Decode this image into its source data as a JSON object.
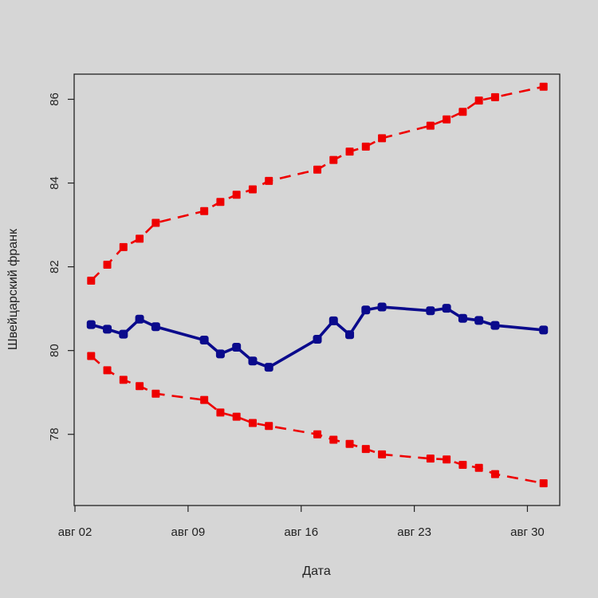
{
  "chart_data": {
    "type": "line",
    "xlabel": "Дата",
    "ylabel": "Швейцарский франк",
    "x_ticks": [
      {
        "day": 2,
        "label": "авг 02"
      },
      {
        "day": 9,
        "label": "авг 09"
      },
      {
        "day": 16,
        "label": "авг 16"
      },
      {
        "day": 23,
        "label": "авг 23"
      },
      {
        "day": 30,
        "label": "авг 30"
      }
    ],
    "y_ticks": [
      78,
      80,
      82,
      84,
      86
    ],
    "xlim": [
      1.95,
      32
    ],
    "ylim": [
      76.3,
      86.6
    ],
    "grid": false,
    "colors": {
      "main": "#0a0a8c",
      "band": "#ee0000"
    },
    "series": [
      {
        "style": "solid",
        "color": "#0a0a8c",
        "x": [
          3,
          4,
          5,
          6,
          7,
          10,
          11,
          12,
          13,
          14,
          17,
          18,
          19,
          20,
          21,
          24,
          25,
          26,
          27,
          28,
          31
        ],
        "values": [
          80.62,
          80.51,
          80.39,
          80.75,
          80.57,
          80.25,
          79.92,
          80.08,
          79.75,
          79.6,
          80.27,
          80.71,
          80.38,
          80.97,
          81.04,
          80.95,
          81.01,
          80.77,
          80.72,
          80.6,
          80.49
        ]
      },
      {
        "style": "dashed",
        "color": "#ee0000",
        "x": [
          3,
          4,
          5,
          6,
          7,
          10,
          11,
          12,
          13,
          14,
          17,
          18,
          19,
          20,
          21,
          24,
          25,
          26,
          27,
          28,
          31
        ],
        "values": [
          81.67,
          82.05,
          82.47,
          82.67,
          83.05,
          83.33,
          83.55,
          83.72,
          83.85,
          84.05,
          84.32,
          84.55,
          84.75,
          84.87,
          85.07,
          85.37,
          85.52,
          85.7,
          85.97,
          86.05,
          86.3
        ]
      },
      {
        "style": "dashed",
        "color": "#ee0000",
        "x": [
          3,
          4,
          5,
          6,
          7,
          10,
          11,
          12,
          13,
          14,
          17,
          18,
          19,
          20,
          21,
          24,
          25,
          26,
          27,
          28,
          31
        ],
        "values": [
          79.87,
          79.53,
          79.3,
          79.15,
          78.97,
          78.82,
          78.52,
          78.42,
          78.27,
          78.2,
          78.0,
          77.87,
          77.77,
          77.65,
          77.52,
          77.42,
          77.4,
          77.27,
          77.2,
          77.05,
          76.83
        ]
      }
    ]
  }
}
